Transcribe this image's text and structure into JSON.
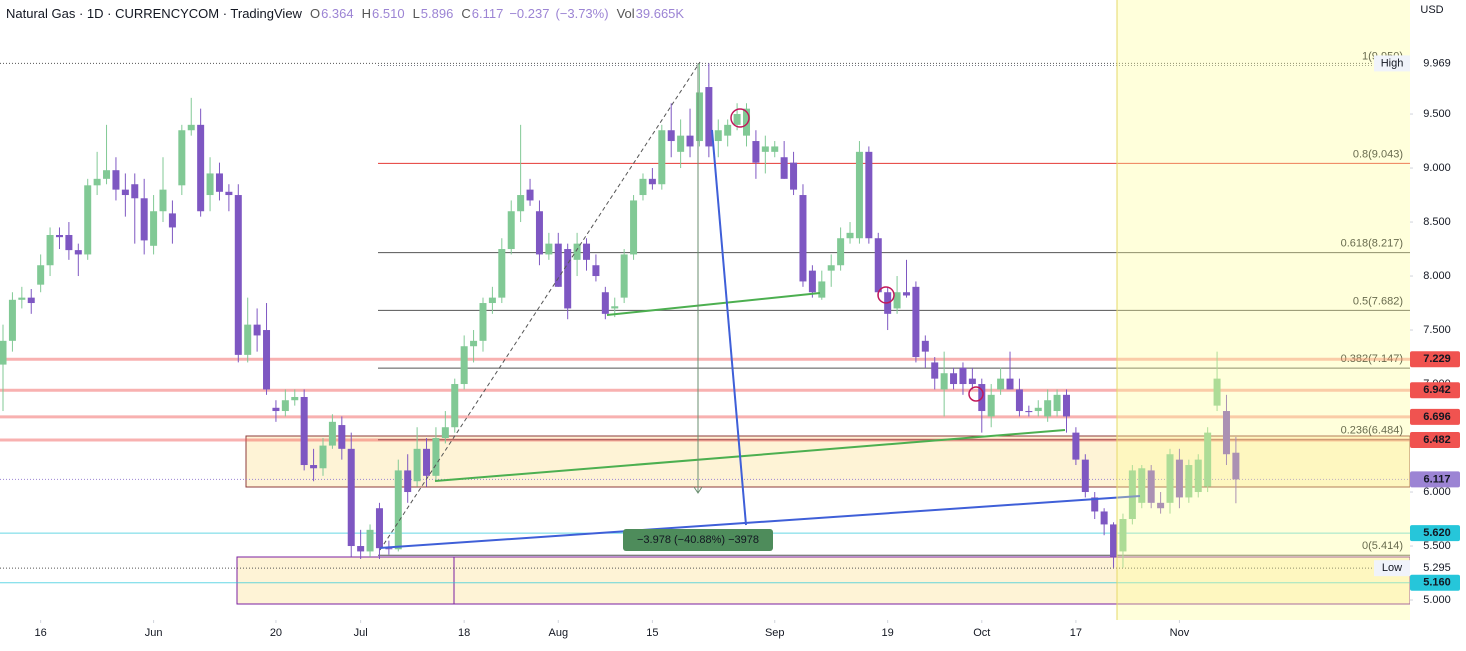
{
  "chart_data": {
    "type": "candlestick",
    "title": "Natural Gas · 1D · CURRENCYCOM · TradingView",
    "header_stats": [
      {
        "name": "O",
        "value": 6.364
      },
      {
        "name": "H",
        "value": 6.51,
        "value_label": "6.510"
      },
      {
        "name": "L",
        "value": 5.896
      },
      {
        "name": "C",
        "value": 6.117
      },
      {
        "value": -0.237,
        "value_label": "−0.237"
      },
      {
        "value": -3.73,
        "value_label": "(−3.73%)"
      },
      {
        "name": "Vol",
        "value": 39665,
        "value_label": "39.665K"
      }
    ],
    "currency": "USD",
    "up_color": "#81c995",
    "down_color": "#7e57c2",
    "grid": false,
    "xlim": [
      -0.32,
      149.5
    ],
    "xticks": [
      {
        "value": 4,
        "label": "16"
      },
      {
        "value": 16,
        "label": "Jun"
      },
      {
        "value": 29,
        "label": "20"
      },
      {
        "value": 38,
        "label": "Jul"
      },
      {
        "value": 49,
        "label": "18"
      },
      {
        "value": 59,
        "label": "Aug"
      },
      {
        "value": 69,
        "label": "15"
      },
      {
        "value": 82,
        "label": "Sep"
      },
      {
        "value": 94,
        "label": "19"
      },
      {
        "value": 104,
        "label": "Oct"
      },
      {
        "value": 114,
        "label": "17"
      },
      {
        "value": 125,
        "label": "Nov"
      }
    ],
    "ylim": [
      4.815,
      10.556
    ],
    "yticks": [
      {
        "value": 5,
        "label": "5.000"
      },
      {
        "value": 5.5,
        "label": "5.500"
      },
      {
        "value": 6,
        "label": "6.000"
      },
      {
        "value": 6.5,
        "label": "6.500"
      },
      {
        "value": 7,
        "label": "7.000"
      },
      {
        "value": 7.5,
        "label": "7.500"
      },
      {
        "value": 8,
        "label": "8.000"
      },
      {
        "value": 8.5,
        "label": "8.500"
      },
      {
        "value": 9,
        "label": "9.000"
      },
      {
        "value": 9.5,
        "label": "9.500"
      }
    ],
    "ohlc": [
      [
        7.18,
        7.55,
        6.75,
        7.4
      ],
      [
        7.4,
        7.85,
        7.3,
        7.78
      ],
      [
        7.78,
        7.9,
        7.7,
        7.8
      ],
      [
        7.8,
        7.88,
        7.65,
        7.75
      ],
      [
        7.92,
        8.2,
        7.85,
        8.1
      ],
      [
        8.1,
        8.45,
        8.0,
        8.38
      ],
      [
        8.38,
        8.45,
        8.25,
        8.36
      ],
      [
        8.38,
        8.5,
        8.15,
        8.24
      ],
      [
        8.24,
        8.3,
        8.0,
        8.2
      ],
      [
        8.2,
        8.9,
        8.15,
        8.84
      ],
      [
        8.84,
        9.15,
        8.75,
        8.9
      ],
      [
        8.9,
        9.4,
        8.85,
        8.98
      ],
      [
        8.98,
        9.1,
        8.7,
        8.8
      ],
      [
        8.8,
        8.95,
        8.55,
        8.75
      ],
      [
        8.85,
        8.95,
        8.3,
        8.72
      ],
      [
        8.72,
        8.9,
        8.2,
        8.33
      ],
      [
        8.28,
        8.75,
        8.2,
        8.6
      ],
      [
        8.6,
        9.1,
        8.5,
        8.8
      ],
      [
        8.58,
        8.7,
        8.3,
        8.45
      ],
      [
        8.84,
        9.4,
        8.75,
        9.35
      ],
      [
        9.35,
        9.65,
        9.3,
        9.4
      ],
      [
        9.4,
        9.55,
        8.55,
        8.6
      ],
      [
        8.75,
        9.1,
        8.6,
        8.95
      ],
      [
        8.95,
        9.05,
        8.7,
        8.78
      ],
      [
        8.78,
        8.85,
        8.6,
        8.75
      ],
      [
        8.75,
        8.85,
        7.2,
        7.27
      ],
      [
        7.27,
        7.8,
        7.2,
        7.55
      ],
      [
        7.55,
        7.7,
        7.3,
        7.45
      ],
      [
        7.5,
        7.75,
        6.9,
        6.95
      ],
      [
        6.78,
        6.85,
        6.65,
        6.75
      ],
      [
        6.75,
        6.95,
        6.7,
        6.85
      ],
      [
        6.85,
        6.95,
        6.8,
        6.88
      ],
      [
        6.88,
        6.95,
        6.2,
        6.25
      ],
      [
        6.25,
        6.4,
        6.1,
        6.22
      ],
      [
        6.22,
        6.5,
        6.15,
        6.43
      ],
      [
        6.43,
        6.72,
        6.4,
        6.65
      ],
      [
        6.62,
        6.7,
        6.3,
        6.4
      ],
      [
        6.4,
        6.55,
        5.4,
        5.5
      ],
      [
        5.5,
        5.65,
        5.38,
        5.45
      ],
      [
        5.45,
        5.7,
        5.4,
        5.65
      ],
      [
        5.85,
        5.9,
        5.38,
        5.48
      ],
      [
        5.48,
        5.55,
        5.42,
        5.47
      ],
      [
        5.47,
        6.3,
        5.45,
        6.2
      ],
      [
        6.2,
        6.35,
        5.9,
        6.0
      ],
      [
        6.1,
        6.6,
        6.05,
        6.4
      ],
      [
        6.4,
        6.5,
        6.05,
        6.15
      ],
      [
        6.15,
        6.6,
        6.1,
        6.5
      ],
      [
        6.5,
        6.75,
        6.45,
        6.6
      ],
      [
        6.6,
        7.05,
        6.55,
        7.0
      ],
      [
        7.0,
        7.45,
        6.95,
        7.35
      ],
      [
        7.35,
        7.5,
        7.2,
        7.4
      ],
      [
        7.4,
        7.8,
        7.3,
        7.75
      ],
      [
        7.75,
        7.9,
        7.65,
        7.8
      ],
      [
        7.8,
        8.35,
        7.75,
        8.25
      ],
      [
        8.25,
        8.7,
        8.2,
        8.6
      ],
      [
        8.6,
        9.4,
        8.5,
        8.75
      ],
      [
        8.8,
        8.9,
        8.65,
        8.7
      ],
      [
        8.6,
        8.7,
        8.1,
        8.2
      ],
      [
        8.2,
        8.4,
        8.15,
        8.3
      ],
      [
        8.3,
        8.4,
        7.9,
        7.9
      ],
      [
        8.25,
        8.3,
        7.6,
        7.7
      ],
      [
        8.15,
        8.4,
        8.0,
        8.3
      ],
      [
        8.3,
        8.35,
        8.05,
        8.15
      ],
      [
        8.1,
        8.2,
        7.95,
        8.0
      ],
      [
        7.85,
        7.9,
        7.6,
        7.65
      ],
      [
        7.7,
        7.8,
        7.62,
        7.72
      ],
      [
        7.8,
        8.25,
        7.75,
        8.2
      ],
      [
        8.2,
        8.75,
        8.15,
        8.7
      ],
      [
        8.75,
        8.95,
        8.7,
        8.9
      ],
      [
        8.9,
        9.0,
        8.8,
        8.85
      ],
      [
        8.85,
        9.4,
        8.8,
        9.35
      ],
      [
        9.35,
        9.6,
        9.1,
        9.25
      ],
      [
        9.15,
        9.45,
        9.0,
        9.3
      ],
      [
        9.3,
        9.55,
        9.1,
        9.2
      ],
      [
        9.25,
        9.97,
        9.2,
        9.7
      ],
      [
        9.75,
        9.97,
        9.1,
        9.2
      ],
      [
        9.25,
        9.45,
        9.1,
        9.35
      ],
      [
        9.3,
        9.45,
        9.2,
        9.4
      ],
      [
        9.4,
        9.6,
        9.35,
        9.5
      ],
      [
        9.3,
        9.6,
        9.2,
        9.55
      ],
      [
        9.25,
        9.35,
        8.9,
        9.05
      ],
      [
        9.15,
        9.3,
        8.95,
        9.2
      ],
      [
        9.15,
        9.25,
        9.1,
        9.2
      ],
      [
        9.1,
        9.25,
        8.9,
        8.9
      ],
      [
        9.05,
        9.15,
        8.75,
        8.8
      ],
      [
        8.75,
        8.85,
        7.9,
        7.95
      ],
      [
        8.05,
        8.1,
        7.8,
        7.85
      ],
      [
        7.8,
        8.05,
        7.78,
        7.95
      ],
      [
        8.05,
        8.2,
        7.9,
        8.1
      ],
      [
        8.1,
        8.45,
        8.05,
        8.35
      ],
      [
        8.35,
        8.5,
        8.3,
        8.4
      ],
      [
        8.35,
        9.25,
        8.3,
        9.15
      ],
      [
        9.15,
        9.2,
        8.3,
        8.35
      ],
      [
        8.35,
        8.4,
        7.8,
        7.85
      ],
      [
        7.85,
        7.9,
        7.5,
        7.65
      ],
      [
        7.7,
        8.0,
        7.65,
        7.85
      ],
      [
        7.85,
        8.15,
        7.8,
        7.82
      ],
      [
        7.9,
        7.95,
        7.2,
        7.25
      ],
      [
        7.4,
        7.45,
        7.15,
        7.3
      ],
      [
        7.2,
        7.25,
        6.95,
        7.05
      ],
      [
        6.95,
        7.3,
        6.7,
        7.1
      ],
      [
        7.1,
        7.15,
        6.95,
        7.0
      ],
      [
        7.15,
        7.2,
        6.9,
        7.0
      ],
      [
        7.05,
        7.15,
        6.95,
        7.0
      ],
      [
        7.0,
        7.05,
        6.55,
        6.75
      ],
      [
        6.7,
        7.0,
        6.6,
        6.9
      ],
      [
        6.95,
        7.15,
        6.9,
        7.05
      ],
      [
        7.05,
        7.3,
        6.95,
        6.95
      ],
      [
        6.95,
        7.05,
        6.7,
        6.75
      ],
      [
        6.75,
        6.8,
        6.7,
        6.74
      ],
      [
        6.75,
        6.85,
        6.7,
        6.78
      ],
      [
        6.7,
        6.95,
        6.65,
        6.85
      ],
      [
        6.75,
        6.95,
        6.7,
        6.9
      ],
      [
        6.9,
        6.95,
        6.55,
        6.7
      ],
      [
        6.55,
        6.6,
        6.25,
        6.3
      ],
      [
        6.3,
        6.35,
        5.95,
        6.0
      ],
      [
        5.95,
        6.0,
        5.75,
        5.82
      ],
      [
        5.82,
        5.85,
        5.6,
        5.7
      ],
      [
        5.7,
        5.72,
        5.3,
        5.4
      ],
      [
        5.45,
        5.8,
        5.3,
        5.75
      ],
      [
        5.75,
        6.25,
        5.7,
        6.2
      ],
      [
        5.9,
        6.25,
        5.85,
        6.22
      ],
      [
        6.2,
        6.25,
        5.85,
        5.9
      ],
      [
        5.9,
        6.0,
        5.8,
        5.85
      ],
      [
        5.9,
        6.4,
        5.8,
        6.35
      ],
      [
        6.3,
        6.4,
        5.85,
        5.95
      ],
      [
        5.95,
        6.3,
        5.9,
        6.25
      ],
      [
        6.0,
        6.35,
        5.95,
        6.3
      ],
      [
        6.05,
        6.6,
        6.0,
        6.55
      ],
      [
        6.8,
        7.3,
        6.75,
        7.05
      ],
      [
        6.75,
        6.9,
        6.25,
        6.35
      ],
      [
        6.364,
        6.51,
        5.896,
        6.117
      ]
    ],
    "fib_levels": [
      {
        "label": "1(9.950)",
        "value": 9.95,
        "color": "#787b86"
      },
      {
        "label": "0.8(9.043)",
        "value": 9.043,
        "color": "#e53935"
      },
      {
        "label": "0.618(8.217)",
        "value": 8.217,
        "color": "#555555"
      },
      {
        "label": "0.5(7.682)",
        "value": 7.682,
        "color": "#555555"
      },
      {
        "label": "0.382(7.147)",
        "value": 7.147,
        "color": "#555555"
      },
      {
        "label": "0.236(6.484)",
        "value": 6.484,
        "color": "#555555"
      },
      {
        "label": "0(5.414)",
        "value": 5.414,
        "color": "#555555"
      }
    ],
    "price_tags": [
      {
        "name": "High",
        "value": 9.969,
        "style": "dotted"
      },
      {
        "value": 7.229,
        "color": "#f05350",
        "style": "band"
      },
      {
        "value": 6.942,
        "color": "#f05350",
        "style": "band"
      },
      {
        "value": 6.696,
        "color": "#f05350",
        "style": "band"
      },
      {
        "value": 6.482,
        "color": "#f05350",
        "style": "band"
      },
      {
        "value": 6.117,
        "color": "#9c84d4",
        "style": "dotted"
      },
      {
        "value": 5.62,
        "value_label": "5.620",
        "color": "#26c6da",
        "style": "line"
      },
      {
        "name": "Low",
        "value": 5.295,
        "style": "dotted"
      },
      {
        "value": 5.16,
        "value_label": "5.160",
        "color": "#26c6da",
        "style": "line"
      }
    ],
    "measure": {
      "value": -3.978,
      "label": "−3.978 (−40.88%) −3978"
    }
  }
}
